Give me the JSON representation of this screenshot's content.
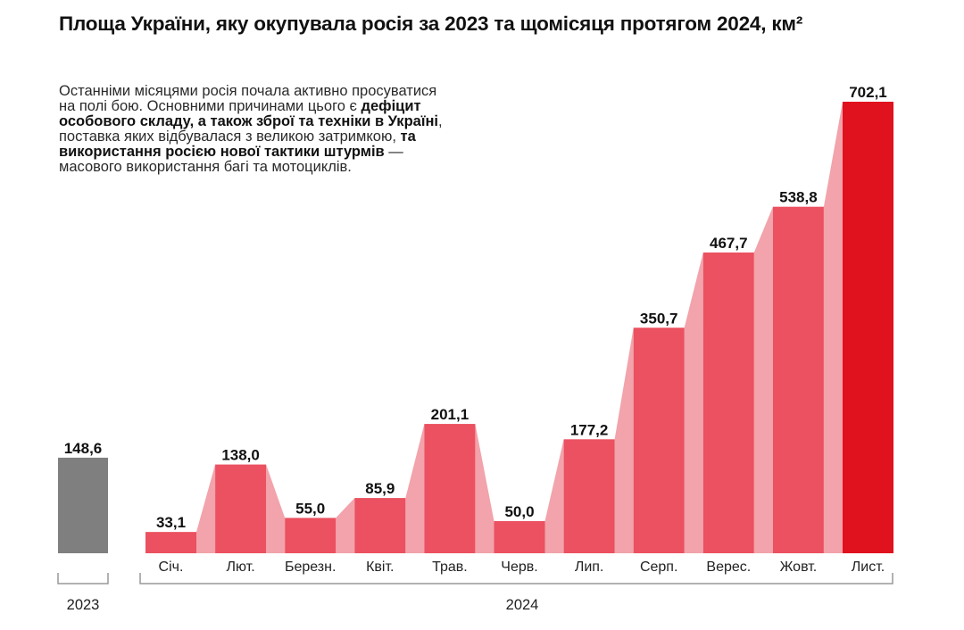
{
  "title": "Площа України, яку окупувала росія за 2023 та щомісяця протягом 2024, км²",
  "description": [
    {
      "text": "Останніми місяцями росія почала активно просуватися на полі бою. Основними причинами цього є ",
      "bold": false
    },
    {
      "text": "дефіцит особового складу, а також зброї та техніки в Україні",
      "bold": true
    },
    {
      "text": ", поставка яких відбувалася з великою затримкою, ",
      "bold": false
    },
    {
      "text": "та використання росією нової тактики штурмів",
      "bold": true
    },
    {
      "text": " — масового використання багі та мотоциклів.",
      "bold": false
    }
  ],
  "colors": {
    "bar_2023": "#7f7f7f",
    "bar_2024": "#eb5160",
    "bar_highlight": "#e0121e",
    "connector": "#f2a3ab",
    "bracket": "#999999"
  },
  "chart_data": {
    "type": "bar",
    "title": "Площа України, яку окупувала росія за 2023 та щомісяця протягом 2024, км²",
    "groups": [
      {
        "label": "2023",
        "categories": [
          ""
        ],
        "values": [
          148.6
        ],
        "value_labels": [
          "148,6"
        ]
      },
      {
        "label": "2024",
        "categories": [
          "Січ.",
          "Лют.",
          "Березн.",
          "Квіт.",
          "Трав.",
          "Черв.",
          "Лип.",
          "Серп.",
          "Верес.",
          "Жовт.",
          "Лист."
        ],
        "values": [
          33.1,
          138.0,
          55.0,
          85.9,
          201.1,
          50.0,
          177.2,
          350.7,
          467.7,
          538.8,
          702.1
        ],
        "value_labels": [
          "33,1",
          "138,0",
          "55,0",
          "85,9",
          "201,1",
          "50,0",
          "177,2",
          "350,7",
          "467,7",
          "538,8",
          "702,1"
        ]
      }
    ],
    "highlight": "Лист.",
    "ylim": [
      0,
      702.1
    ],
    "grid": false
  }
}
